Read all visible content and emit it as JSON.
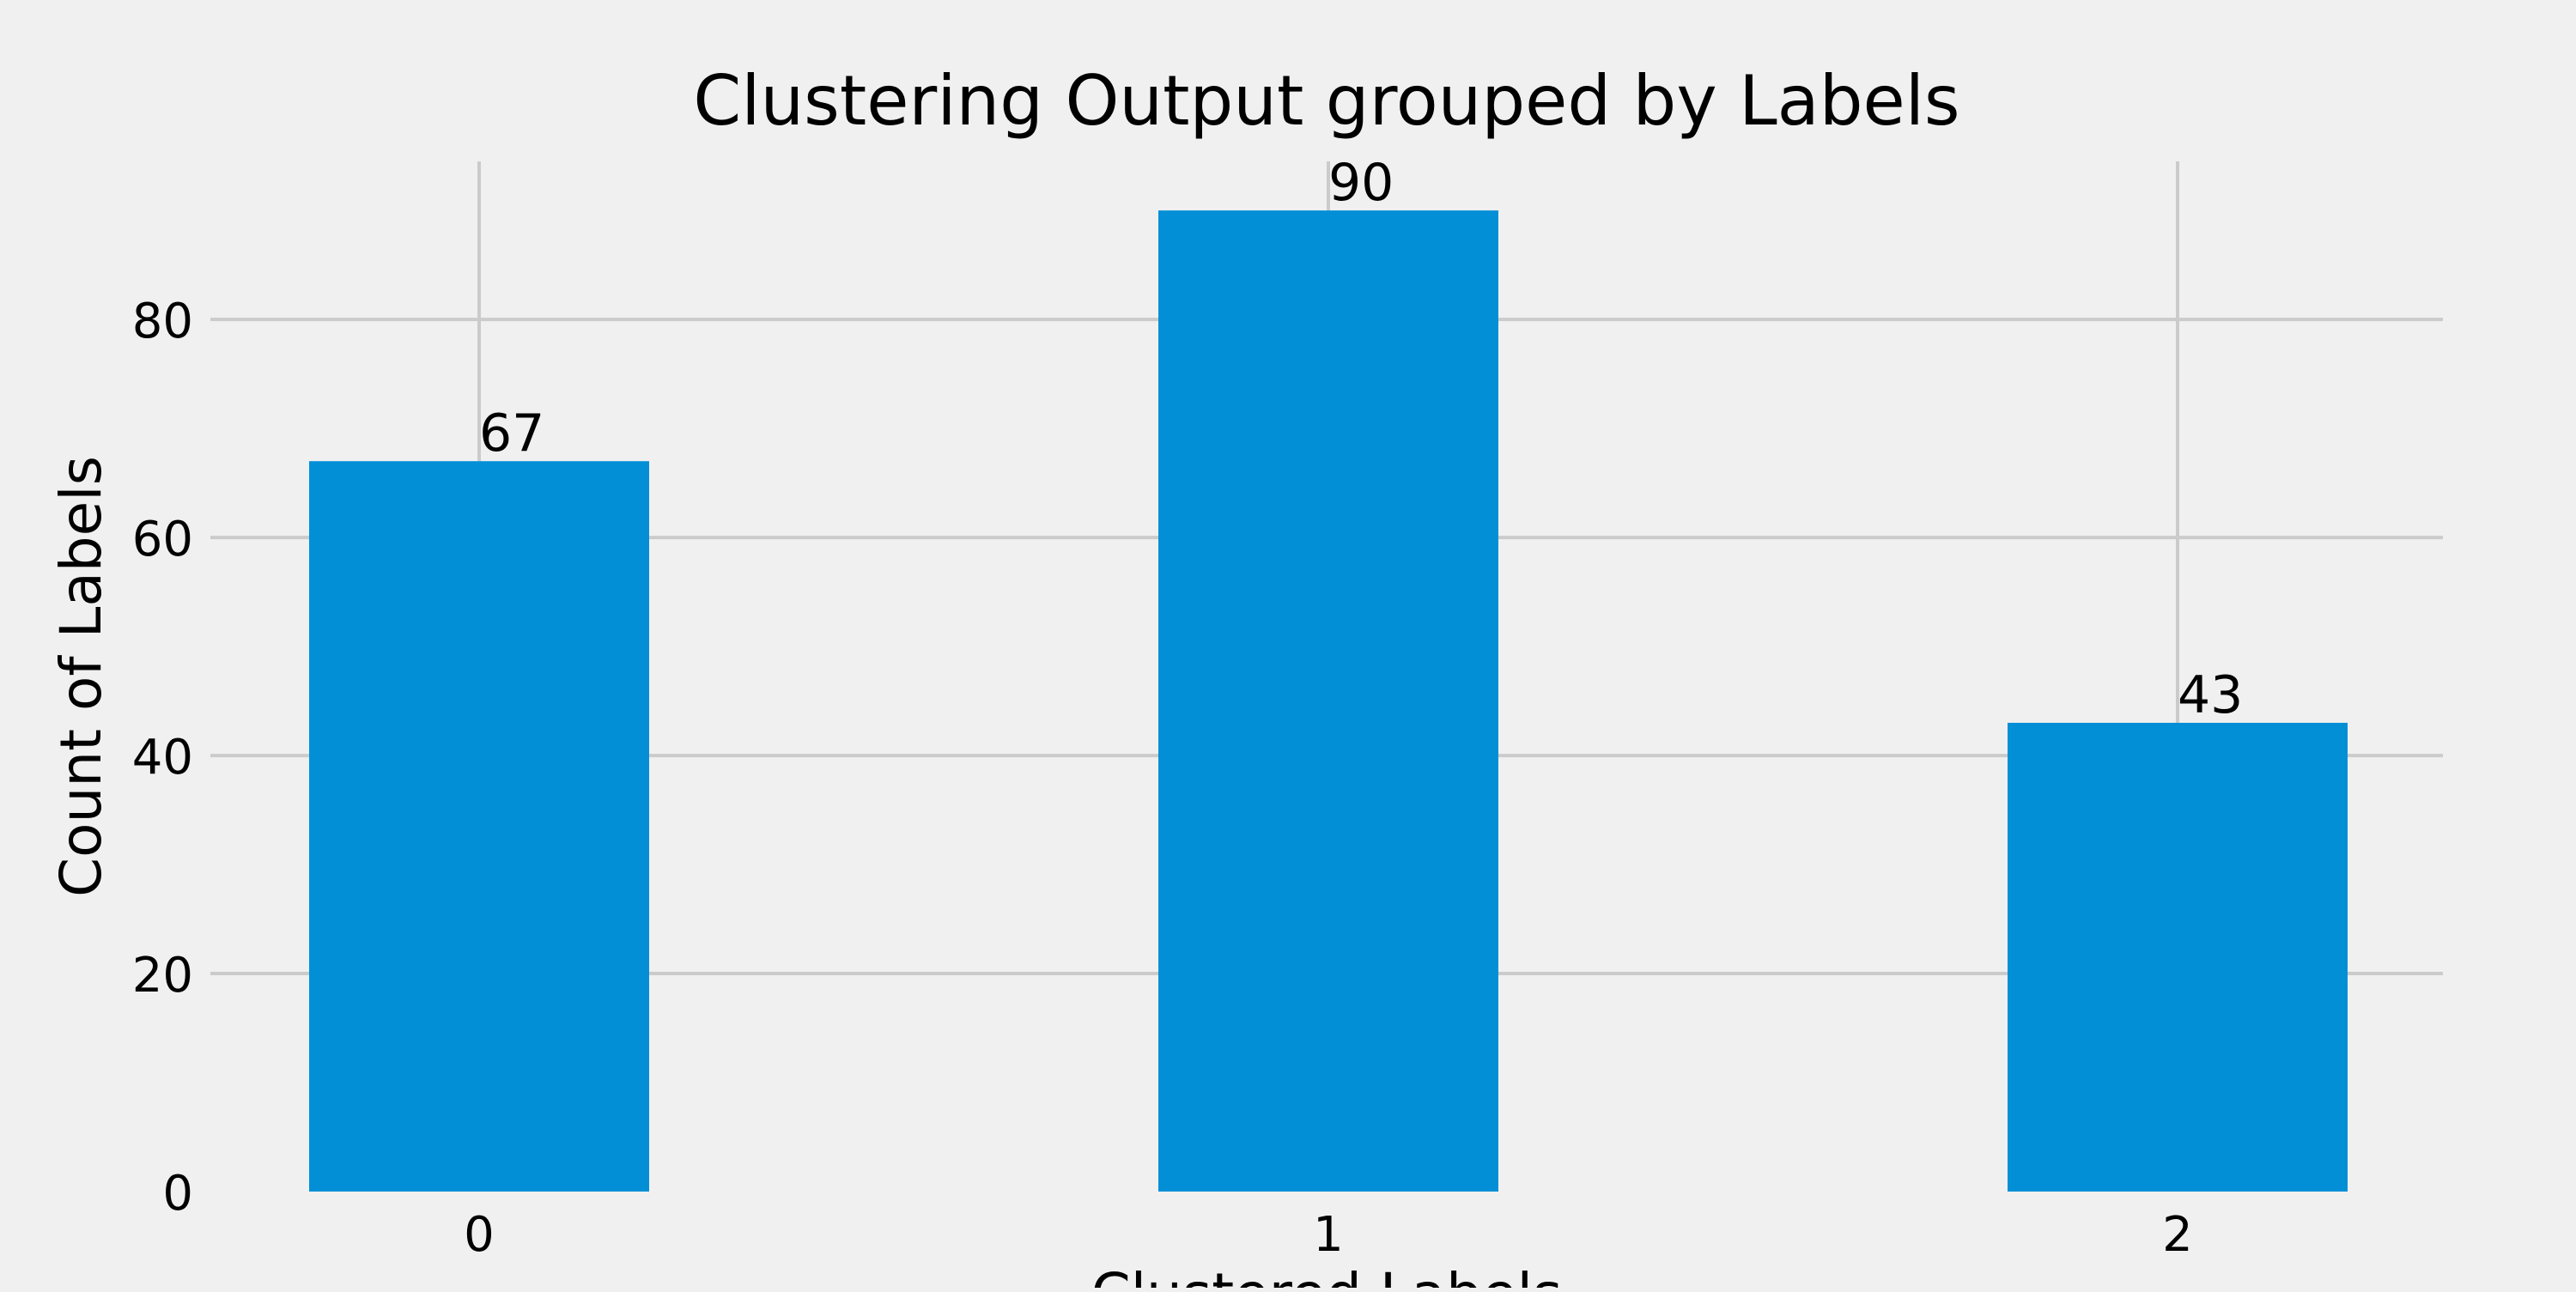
{
  "chart_data": {
    "type": "bar",
    "title": "Clustering Output grouped by Labels",
    "xlabel": "Clustered Labels",
    "ylabel": "Count of Labels",
    "categories": [
      "0",
      "1",
      "2"
    ],
    "values": [
      67,
      90,
      43
    ],
    "data_labels": [
      "67",
      "90",
      "43"
    ],
    "ylim": [
      0,
      94.5
    ],
    "yticks": [
      0,
      20,
      40,
      60,
      80
    ],
    "ytick_labels": [
      "0",
      "20",
      "40",
      "60",
      "80"
    ],
    "grid": true,
    "colors": {
      "bar": "#038fd6",
      "background": "#f0f0f0",
      "grid": "#cbcbcb",
      "text": "#000000"
    }
  }
}
